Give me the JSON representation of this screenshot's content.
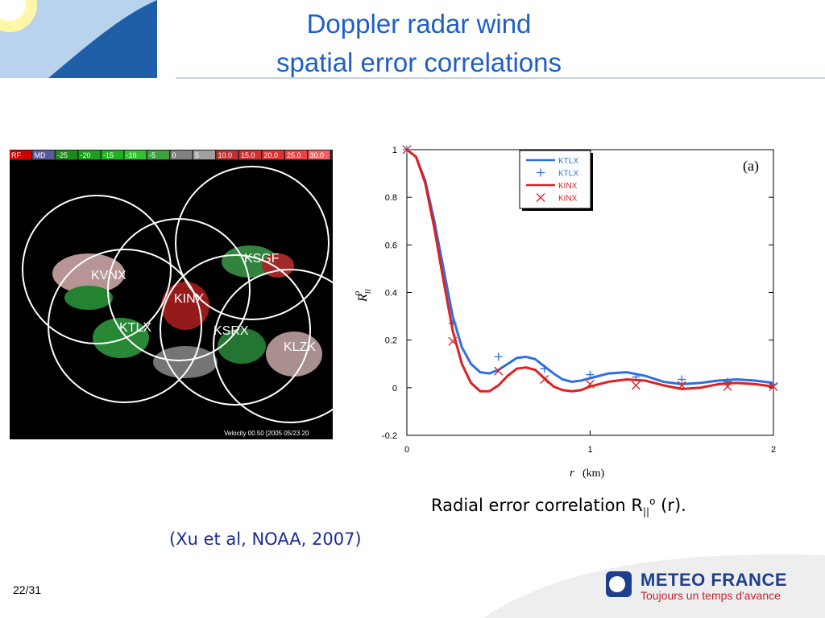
{
  "slide": {
    "title_lines": [
      "Doppler radar wind",
      "spatial error correlations"
    ],
    "caption": {
      "text": "Radial error correlation R",
      "sub": "||",
      "sup": "o",
      "tail": "(r)."
    },
    "citation": "(Xu et al, NOAA, 2007)",
    "page": "22/31",
    "logo": {
      "name": "METEO FRANCE",
      "tagline": "Toujours un temps d'avance"
    },
    "radar": {
      "colorbar": [
        "RF",
        "MD",
        "-25",
        "-20",
        "-15",
        "-10",
        "-5",
        "0",
        "5",
        "10.0",
        "15.0",
        "20.0",
        "25.0",
        "30.0"
      ],
      "footer": "Velocity 00.50 [2005 05/23 20",
      "stations": [
        "KVNX",
        "KSGF",
        "KINX",
        "KTLX",
        "KSRX",
        "KLZK"
      ]
    }
  },
  "chart_data": {
    "type": "line",
    "annotation": "(a)",
    "x_label": "r",
    "x_unit": "(km)",
    "y_label": "R",
    "y_label_sub": "ll",
    "y_label_sup": "o",
    "xlim": [
      0,
      2
    ],
    "ylim": [
      -0.2,
      1
    ],
    "xticks": [
      0,
      1,
      2
    ],
    "yticks": [
      -0.2,
      0,
      0.2,
      0.4,
      0.6,
      0.8,
      1
    ],
    "x": [
      0,
      0.05,
      0.1,
      0.15,
      0.2,
      0.25,
      0.3,
      0.35,
      0.4,
      0.45,
      0.5,
      0.55,
      0.6,
      0.65,
      0.7,
      0.75,
      0.8,
      0.85,
      0.9,
      0.95,
      1.0,
      1.1,
      1.2,
      1.3,
      1.4,
      1.5,
      1.6,
      1.7,
      1.8,
      1.9,
      2.0
    ],
    "series": [
      {
        "name": "KTLX",
        "color": "#2f6fe0",
        "mode": "line",
        "values": [
          1,
          0.97,
          0.87,
          0.7,
          0.5,
          0.3,
          0.17,
          0.1,
          0.065,
          0.06,
          0.075,
          0.1,
          0.125,
          0.13,
          0.12,
          0.09,
          0.06,
          0.035,
          0.025,
          0.03,
          0.04,
          0.06,
          0.065,
          0.05,
          0.025,
          0.015,
          0.02,
          0.03,
          0.035,
          0.03,
          0.02
        ]
      },
      {
        "name": "KTLX",
        "color": "#2f6fe0",
        "mode": "markers",
        "marker": "+",
        "x": [
          0,
          0.25,
          0.5,
          0.75,
          1,
          1.25,
          1.5,
          1.75,
          2
        ],
        "values": [
          1,
          0.27,
          0.13,
          0.08,
          0.055,
          0.045,
          0.035,
          0.025,
          0.015
        ]
      },
      {
        "name": "KINX",
        "color": "#e02020",
        "mode": "line",
        "values": [
          1,
          0.97,
          0.86,
          0.67,
          0.45,
          0.24,
          0.1,
          0.02,
          -0.015,
          -0.015,
          0.01,
          0.05,
          0.08,
          0.085,
          0.075,
          0.04,
          0.005,
          -0.01,
          -0.015,
          -0.01,
          0.005,
          0.025,
          0.035,
          0.03,
          0.01,
          -0.005,
          0,
          0.015,
          0.02,
          0.015,
          0.005
        ]
      },
      {
        "name": "KINX",
        "color": "#e02020",
        "mode": "markers",
        "marker": "x",
        "x": [
          0,
          0.25,
          0.5,
          0.75,
          1,
          1.25,
          1.5,
          1.75,
          2
        ],
        "values": [
          1,
          0.195,
          0.07,
          0.035,
          0.015,
          0.01,
          0.01,
          0.005,
          0.005
        ]
      }
    ]
  }
}
